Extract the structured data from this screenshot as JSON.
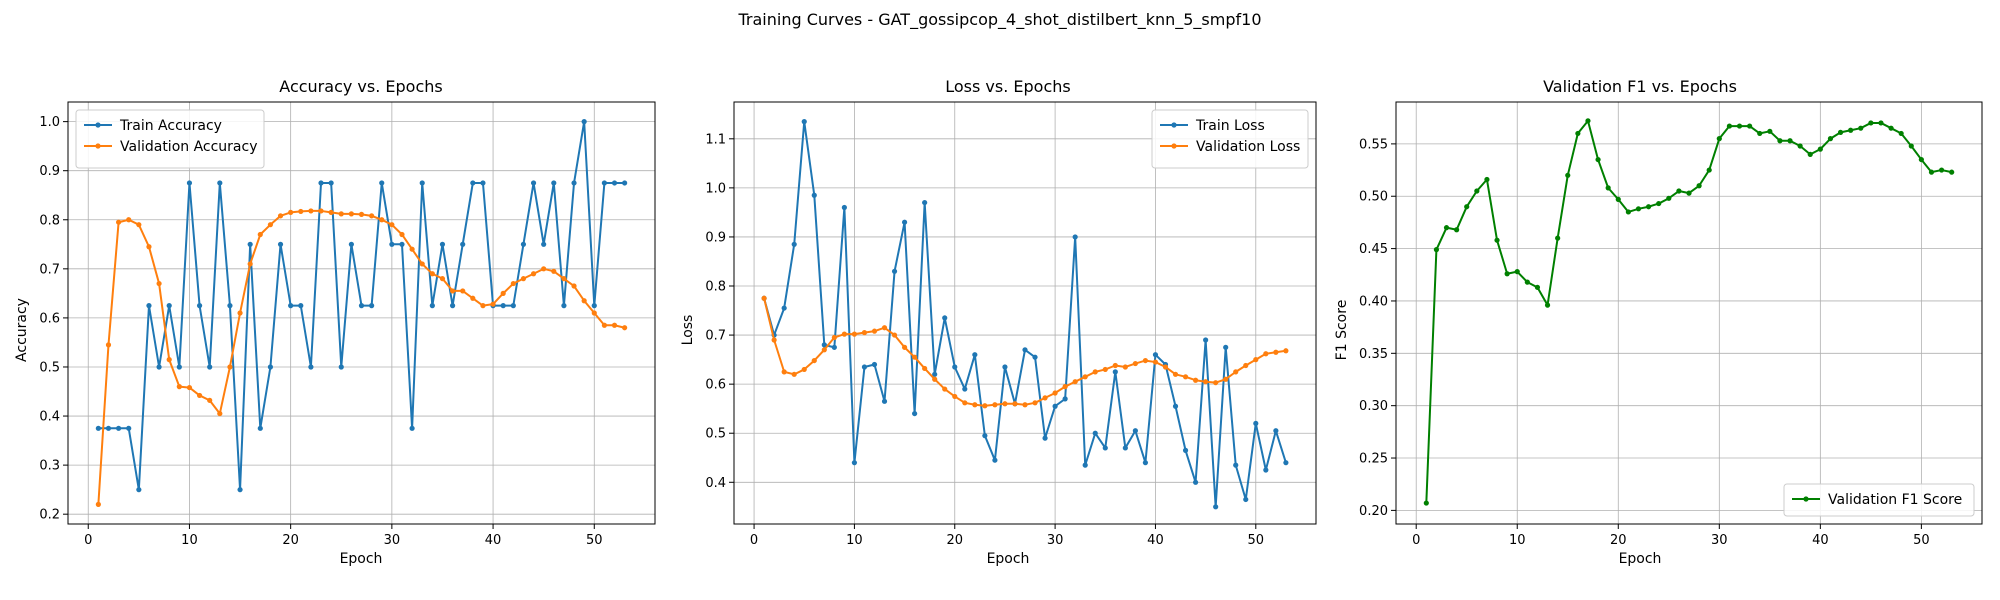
{
  "figure_title": "Training Curves - GAT_gossipcop_4_shot_distilbert_knn_5_smpf10",
  "chart_data": [
    {
      "type": "line",
      "title": "Accuracy vs. Epochs",
      "xlabel": "Epoch",
      "ylabel": "Accuracy",
      "xlim": [
        -2,
        56
      ],
      "ylim": [
        0.18,
        1.04
      ],
      "xticks": [
        0,
        10,
        20,
        30,
        40,
        50
      ],
      "yticks": [
        0.2,
        0.3,
        0.4,
        0.5,
        0.6,
        0.7,
        0.8,
        0.9,
        1.0
      ],
      "ytick_labels": [
        "0.2",
        "0.3",
        "0.4",
        "0.5",
        "0.6",
        "0.7",
        "0.8",
        "0.9",
        "1.0"
      ],
      "grid": true,
      "legend_position": "upper-left",
      "series": [
        {
          "name": "Train Accuracy",
          "color": "#1f77b4",
          "values": [
            0.375,
            0.375,
            0.375,
            0.375,
            0.25,
            0.625,
            0.5,
            0.625,
            0.5,
            0.875,
            0.625,
            0.5,
            0.875,
            0.625,
            0.25,
            0.75,
            0.375,
            0.5,
            0.75,
            0.625,
            0.625,
            0.5,
            0.875,
            0.875,
            0.5,
            0.75,
            0.625,
            0.625,
            0.875,
            0.75,
            0.75,
            0.375,
            0.875,
            0.625,
            0.75,
            0.625,
            0.75,
            0.875,
            0.875,
            0.625,
            0.625,
            0.625,
            0.75,
            0.875,
            0.75,
            0.875,
            0.625,
            0.875,
            1.0,
            0.625,
            0.875,
            0.875,
            0.875
          ]
        },
        {
          "name": "Validation Accuracy",
          "color": "#ff7f0e",
          "values": [
            0.22,
            0.545,
            0.795,
            0.8,
            0.79,
            0.745,
            0.67,
            0.515,
            0.46,
            0.458,
            0.442,
            0.432,
            0.405,
            0.5,
            0.61,
            0.71,
            0.77,
            0.79,
            0.808,
            0.815,
            0.817,
            0.818,
            0.818,
            0.815,
            0.812,
            0.812,
            0.811,
            0.808,
            0.8,
            0.79,
            0.77,
            0.74,
            0.71,
            0.69,
            0.68,
            0.655,
            0.655,
            0.64,
            0.625,
            0.628,
            0.65,
            0.67,
            0.68,
            0.69,
            0.7,
            0.695,
            0.68,
            0.665,
            0.635,
            0.61,
            0.585,
            0.585,
            0.58
          ]
        }
      ]
    },
    {
      "type": "line",
      "title": "Loss vs. Epochs",
      "xlabel": "Epoch",
      "ylabel": "Loss",
      "xlim": [
        -2,
        56
      ],
      "ylim": [
        0.315,
        1.175
      ],
      "xticks": [
        0,
        10,
        20,
        30,
        40,
        50
      ],
      "yticks": [
        0.4,
        0.5,
        0.6,
        0.7,
        0.8,
        0.9,
        1.0,
        1.1
      ],
      "ytick_labels": [
        "0.4",
        "0.5",
        "0.6",
        "0.7",
        "0.8",
        "0.9",
        "1.0",
        "1.1"
      ],
      "grid": true,
      "legend_position": "upper-right",
      "series": [
        {
          "name": "Train Loss",
          "color": "#1f77b4",
          "values": [
            0.775,
            0.7,
            0.755,
            0.885,
            1.135,
            0.985,
            0.68,
            0.675,
            0.96,
            0.44,
            0.635,
            0.64,
            0.565,
            0.83,
            0.93,
            0.54,
            0.97,
            0.62,
            0.735,
            0.635,
            0.59,
            0.66,
            0.495,
            0.445,
            0.635,
            0.56,
            0.67,
            0.655,
            0.49,
            0.555,
            0.57,
            0.9,
            0.435,
            0.5,
            0.47,
            0.625,
            0.47,
            0.505,
            0.44,
            0.66,
            0.64,
            0.555,
            0.465,
            0.4,
            0.69,
            0.35,
            0.675,
            0.435,
            0.365,
            0.52,
            0.425,
            0.505,
            0.44
          ]
        },
        {
          "name": "Validation Loss",
          "color": "#ff7f0e",
          "values": [
            0.775,
            0.69,
            0.625,
            0.62,
            0.63,
            0.648,
            0.67,
            0.695,
            0.702,
            0.702,
            0.705,
            0.708,
            0.715,
            0.7,
            0.675,
            0.655,
            0.632,
            0.61,
            0.59,
            0.575,
            0.562,
            0.558,
            0.556,
            0.558,
            0.56,
            0.56,
            0.558,
            0.562,
            0.572,
            0.582,
            0.595,
            0.605,
            0.615,
            0.625,
            0.63,
            0.638,
            0.635,
            0.642,
            0.648,
            0.645,
            0.635,
            0.62,
            0.615,
            0.608,
            0.605,
            0.603,
            0.61,
            0.625,
            0.638,
            0.65,
            0.662,
            0.665,
            0.668
          ]
        }
      ]
    },
    {
      "type": "line",
      "title": "Validation F1 vs. Epochs",
      "xlabel": "Epoch",
      "ylabel": "F1 Score",
      "xlim": [
        -2,
        56
      ],
      "ylim": [
        0.187,
        0.59
      ],
      "xticks": [
        0,
        10,
        20,
        30,
        40,
        50
      ],
      "yticks": [
        0.2,
        0.25,
        0.3,
        0.35,
        0.4,
        0.45,
        0.5,
        0.55
      ],
      "ytick_labels": [
        "0.20",
        "0.25",
        "0.30",
        "0.35",
        "0.40",
        "0.45",
        "0.50",
        "0.55"
      ],
      "grid": true,
      "legend_position": "lower-right",
      "series": [
        {
          "name": "Validation F1 Score",
          "color": "#008000",
          "values": [
            0.207,
            0.449,
            0.47,
            0.468,
            0.49,
            0.505,
            0.516,
            0.458,
            0.426,
            0.428,
            0.418,
            0.413,
            0.396,
            0.46,
            0.52,
            0.56,
            0.572,
            0.535,
            0.508,
            0.497,
            0.485,
            0.488,
            0.49,
            0.493,
            0.498,
            0.505,
            0.503,
            0.51,
            0.525,
            0.555,
            0.567,
            0.567,
            0.567,
            0.56,
            0.562,
            0.553,
            0.553,
            0.548,
            0.54,
            0.545,
            0.555,
            0.561,
            0.563,
            0.565,
            0.57,
            0.57,
            0.565,
            0.56,
            0.548,
            0.535,
            0.523,
            0.525,
            0.523
          ]
        }
      ]
    }
  ]
}
